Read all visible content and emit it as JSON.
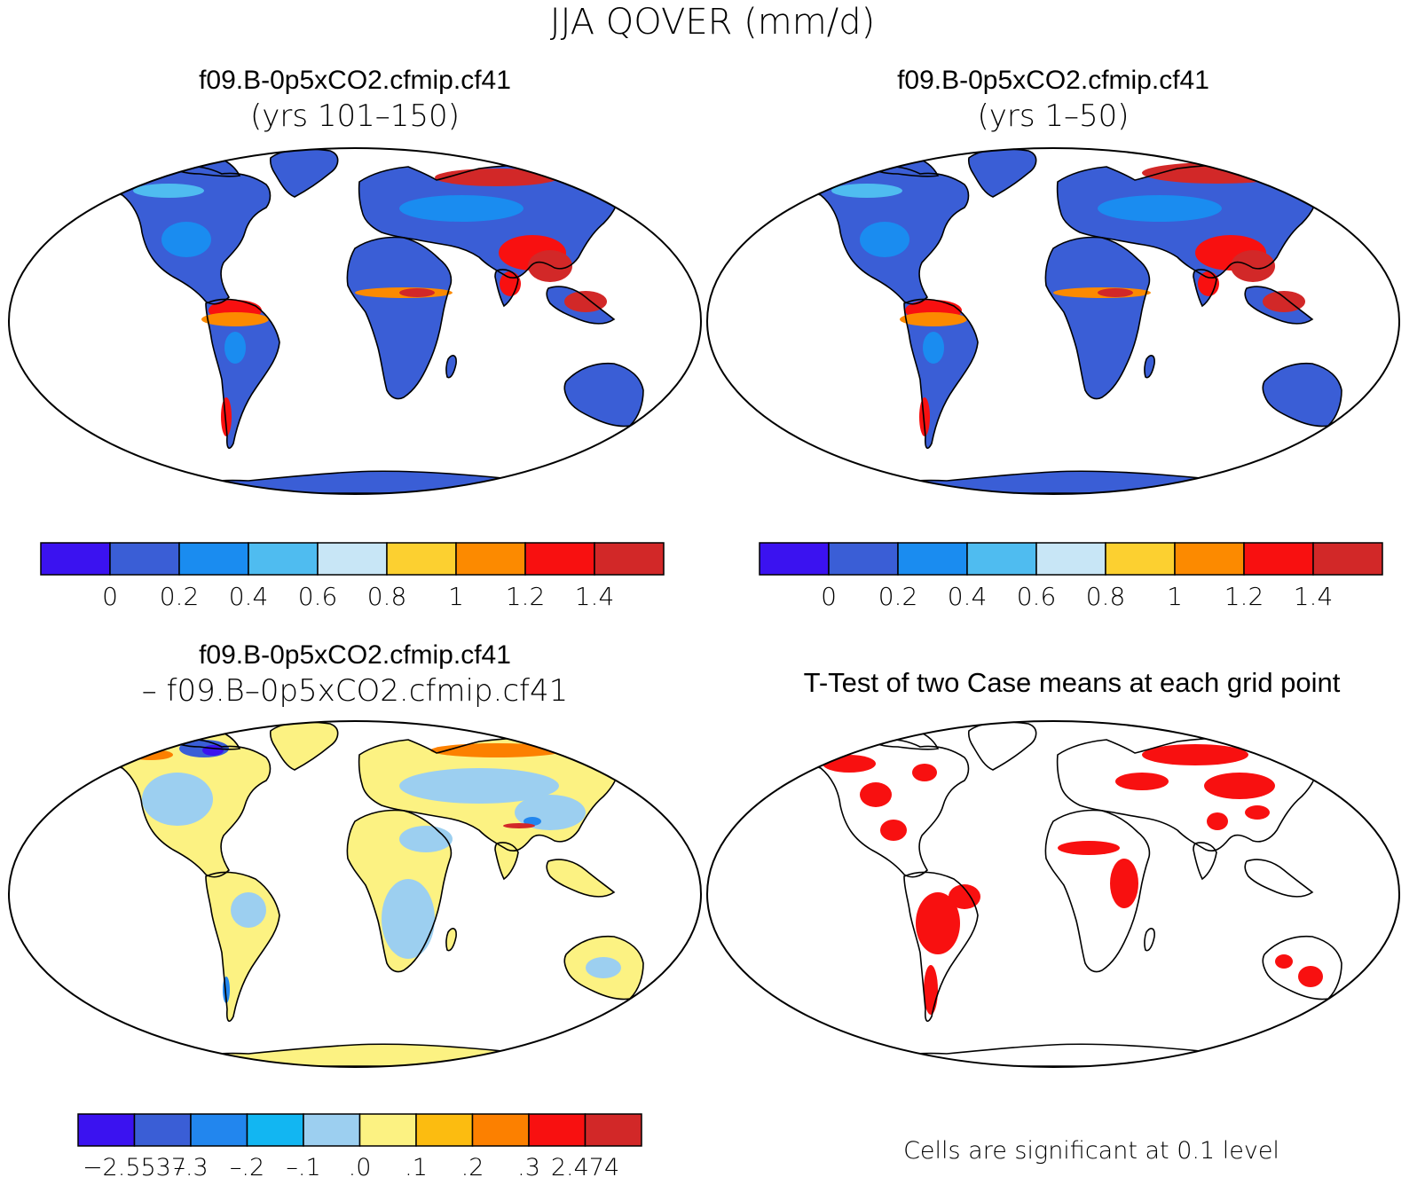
{
  "figure": {
    "title": "JJA QOVER (mm/d)"
  },
  "panels": [
    {
      "id": "case1",
      "title_line1": "f09.B-0p5xCO2.cfmip.cf41",
      "title_line2": "(yrs 101–150)"
    },
    {
      "id": "case2",
      "title_line1": "f09.B-0p5xCO2.cfmip.cf41",
      "title_line2": "(yrs 1–50)"
    },
    {
      "id": "diff",
      "title_line1": "f09.B-0p5xCO2.cfmip.cf41",
      "title_line2": "– f09.B–0p5xCO2.cfmip.cf41"
    },
    {
      "id": "ttest",
      "title_line1": "T-Test of two Case means at each grid point",
      "footnote": "Cells are significant at 0.1 level"
    }
  ],
  "colorbars": {
    "mean": {
      "colors": [
        "#3b12f0",
        "#3a5ed6",
        "#1a8cf0",
        "#4fbcf0",
        "#c8e6f6",
        "#fcd030",
        "#fc8a00",
        "#f81010",
        "#d22828"
      ],
      "labels": [
        "0",
        "0.2",
        "0.4",
        "0.6",
        "0.8",
        "1",
        "1.2",
        "1.4"
      ]
    },
    "diff": {
      "colors": [
        "#3b12f0",
        "#3a5ed6",
        "#2286ee",
        "#12b6f2",
        "#9ccff0",
        "#fcf282",
        "#fcbc10",
        "#fc8000",
        "#f81010",
        "#d22828"
      ],
      "labels": [
        "−2.5537",
        "–.3",
        "–.2",
        "–.1",
        ".0",
        ".1",
        ".2",
        ".3",
        "2.474"
      ]
    }
  },
  "map_colors": {
    "land_base_mean": "#3a5ed6",
    "land_base_diff": "#fcf282",
    "land_alt_diff": "#9ccff0",
    "significant": "#f81010"
  },
  "chart_data": [
    {
      "type": "heatmap",
      "title": "f09.B-0p5xCO2.cfmip.cf41 (yrs 101–150)",
      "variable": "QOVER",
      "units": "mm/d",
      "season": "JJA",
      "levels": [
        0,
        0.2,
        0.4,
        0.6,
        0.8,
        1,
        1.2,
        1.4
      ]
    },
    {
      "type": "heatmap",
      "title": "f09.B-0p5xCO2.cfmip.cf41 (yrs 1–50)",
      "variable": "QOVER",
      "units": "mm/d",
      "season": "JJA",
      "levels": [
        0,
        0.2,
        0.4,
        0.6,
        0.8,
        1,
        1.2,
        1.4
      ]
    },
    {
      "type": "heatmap",
      "title": "f09.B-0p5xCO2.cfmip.cf41 – f09.B–0p5xCO2.cfmip.cf41",
      "levels": [
        -2.5537,
        -0.3,
        -0.2,
        -0.1,
        0.0,
        0.1,
        0.2,
        0.3,
        2.474
      ]
    },
    {
      "type": "heatmap",
      "title": "T-Test of two Case means at each grid point",
      "significance_level": 0.1
    }
  ]
}
